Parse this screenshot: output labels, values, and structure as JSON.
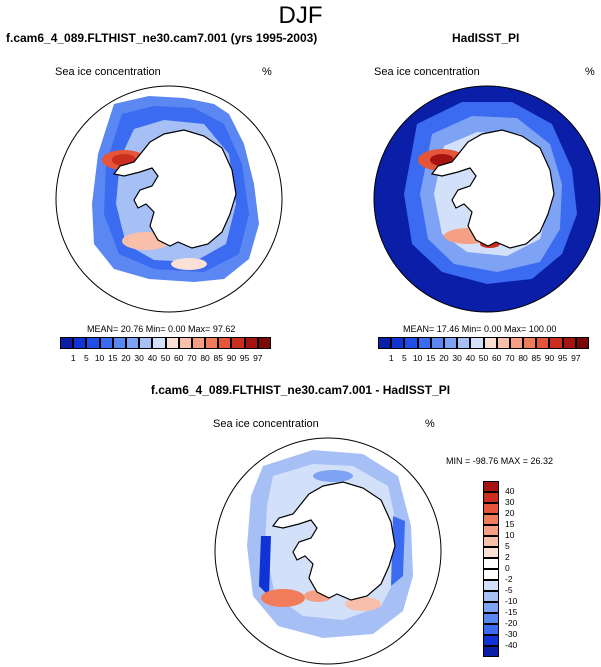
{
  "figure_title": "DJF",
  "panels": {
    "left": {
      "title": "f.cam6_4_089.FLTHIST_ne30.cam7.001 (yrs 1995-2003)",
      "variable": "Sea ice concentration",
      "units": "%",
      "stats": "MEAN= 20.76  Min=  0.00  Max= 97.62"
    },
    "right": {
      "title": "HadISST_PI",
      "variable": "Sea ice concentration",
      "units": "%",
      "stats": "MEAN= 17.46  Min=  0.00  Max= 100.00"
    },
    "diff": {
      "title": "f.cam6_4_089.FLTHIST_ne30.cam7.001 - HadISST_PI",
      "variable": "Sea ice concentration",
      "units": "%",
      "stats": "MIN = -98.76 MAX =  26.32"
    }
  },
  "chart_data": [
    {
      "type": "heatmap",
      "title": "f.cam6_4_089.FLTHIST_ne30.cam7.001 (yrs 1995-2003)",
      "subtitle": "Sea ice concentration",
      "units": "%",
      "mean": 20.76,
      "min": 0.0,
      "max": 97.62,
      "colorbar_levels": [
        "1",
        "5",
        "10",
        "15",
        "20",
        "30",
        "40",
        "50",
        "60",
        "70",
        "80",
        "85",
        "90",
        "95",
        "97"
      ],
      "colorbar_colors": [
        "#0a1ea8",
        "#1033d6",
        "#1e4fe6",
        "#3a6bf0",
        "#5a87f2",
        "#7ea2f4",
        "#a6c0f6",
        "#d2e0fa",
        "#fbe0d6",
        "#f8c0aa",
        "#f5a084",
        "#f07c5c",
        "#e4553a",
        "#cc2e1e",
        "#a51410",
        "#7a0806"
      ]
    },
    {
      "type": "heatmap",
      "title": "HadISST_PI",
      "subtitle": "Sea ice concentration",
      "units": "%",
      "mean": 17.46,
      "min": 0.0,
      "max": 100.0,
      "colorbar_levels": [
        "1",
        "5",
        "10",
        "15",
        "20",
        "30",
        "40",
        "50",
        "60",
        "70",
        "80",
        "85",
        "90",
        "95",
        "97"
      ],
      "colorbar_colors": [
        "#0a1ea8",
        "#1033d6",
        "#1e4fe6",
        "#3a6bf0",
        "#5a87f2",
        "#7ea2f4",
        "#a6c0f6",
        "#d2e0fa",
        "#fbe0d6",
        "#f8c0aa",
        "#f5a084",
        "#f07c5c",
        "#e4553a",
        "#cc2e1e",
        "#a51410",
        "#7a0806"
      ]
    },
    {
      "type": "heatmap",
      "title": "f.cam6_4_089.FLTHIST_ne30.cam7.001 - HadISST_PI",
      "subtitle": "Sea ice concentration",
      "units": "%",
      "min": -98.76,
      "max": 26.32,
      "colorbar_levels": [
        "40",
        "30",
        "20",
        "15",
        "10",
        "5",
        "2",
        "0",
        "-2",
        "-5",
        "-10",
        "-15",
        "-20",
        "-30",
        "-40"
      ],
      "colorbar_colors": [
        "#a51410",
        "#cc2e1e",
        "#e4553a",
        "#f07c5c",
        "#f5a084",
        "#f8c0aa",
        "#fbe0d6",
        "#ffffff",
        "#ffffff",
        "#d2e0fa",
        "#a6c0f6",
        "#7ea2f4",
        "#5a87f2",
        "#3a6bf0",
        "#1033d6",
        "#0a1ea8"
      ]
    }
  ]
}
